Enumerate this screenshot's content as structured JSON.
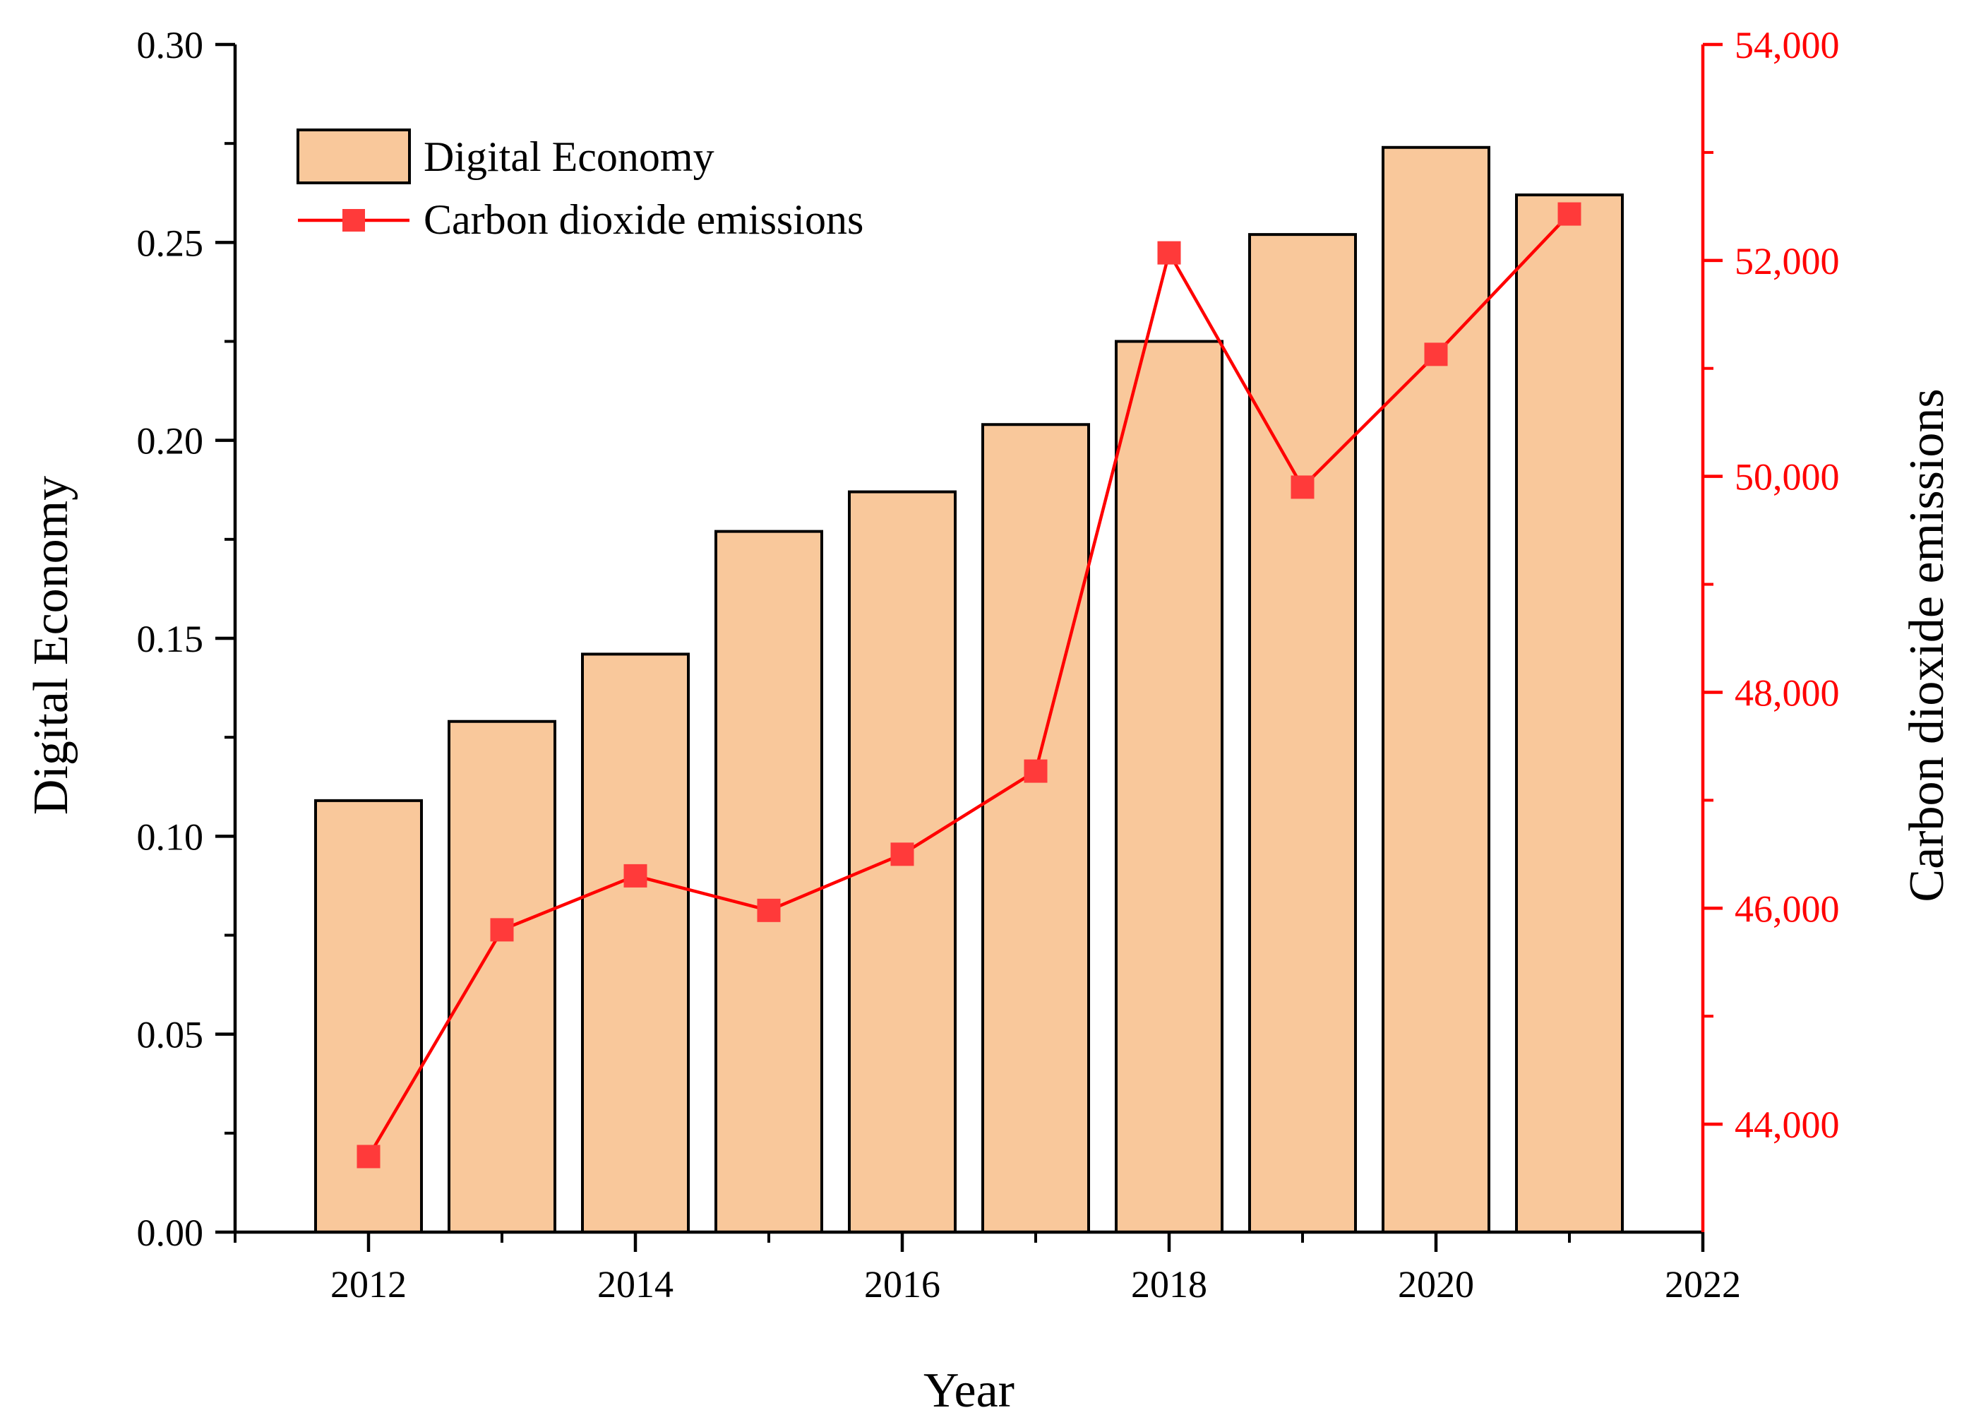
{
  "chart_data": {
    "type": "bar+line",
    "x": [
      2012,
      2013,
      2014,
      2015,
      2016,
      2017,
      2018,
      2019,
      2020,
      2021
    ],
    "series": [
      {
        "name": "Digital Economy",
        "type": "bar",
        "axis": "left",
        "color": "#f9c89b",
        "values": [
          0.109,
          0.129,
          0.146,
          0.177,
          0.187,
          0.204,
          0.225,
          0.252,
          0.274,
          0.262
        ]
      },
      {
        "name": "Carbon dioxide emissions",
        "type": "line",
        "axis": "right",
        "color": "#ff0000",
        "marker_color": "#ff3a3a",
        "marker": "square",
        "values": [
          43700,
          45800,
          46300,
          45980,
          46500,
          47270,
          52070,
          49900,
          51130,
          52430
        ]
      }
    ],
    "xlabel": "Year",
    "ylabel_left": "Digital Economy",
    "ylabel_right": "Carbon dioxide emissions",
    "xlim": [
      2011,
      2022
    ],
    "ylim_left": [
      0,
      0.3
    ],
    "ylim_right": [
      43000,
      54000
    ],
    "x_ticks": [
      "2012",
      "2014",
      "2016",
      "2018",
      "2020",
      "2022"
    ],
    "y_ticks_left": [
      "0.00",
      "0.05",
      "0.10",
      "0.15",
      "0.20",
      "0.25",
      "0.30"
    ],
    "y_ticks_right": [
      "44,000",
      "46,000",
      "48,000",
      "50,000",
      "52,000",
      "54,000"
    ],
    "legend_position": "top-left",
    "grid": false
  }
}
